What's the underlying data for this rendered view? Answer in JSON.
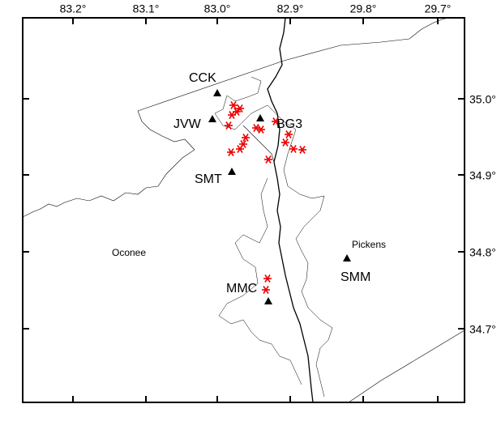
{
  "top_axis_labels": [
    "83.2°",
    "83.1°",
    "83.0°",
    "82.9°",
    "29.8°",
    "29.7°"
  ],
  "right_axis_labels": [
    "35.0°",
    "34.9°",
    "34.8°",
    "34.7°"
  ],
  "stations": [
    {
      "label": "CCK"
    },
    {
      "label": "JVW"
    },
    {
      "label": "BG3"
    },
    {
      "label": "SMT"
    },
    {
      "label": "MMC"
    },
    {
      "label": "SMM"
    }
  ],
  "regions": [
    "Oconee",
    "Pickens"
  ]
}
